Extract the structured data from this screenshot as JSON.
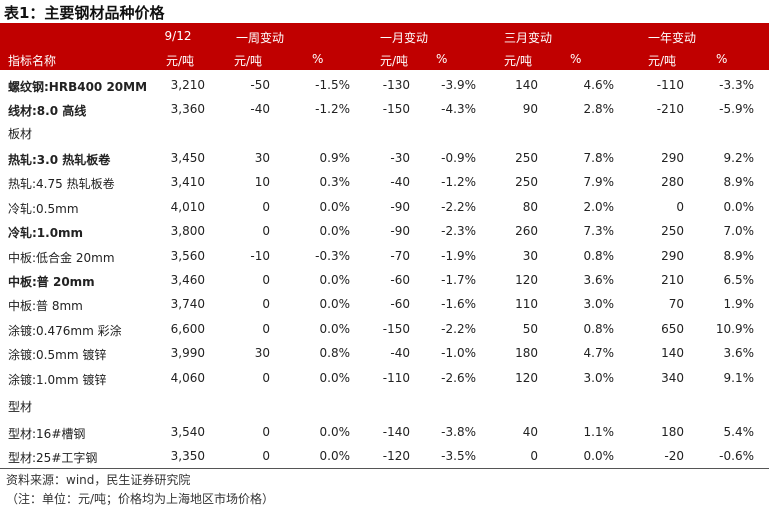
{
  "title": "表1：主要钢材品种价格",
  "header": {
    "row1": {
      "date": "9/12",
      "week": "一周变动",
      "month": "一月变动",
      "quarter": "三月变动",
      "year": "一年变动"
    },
    "row2": {
      "name": "指标名称",
      "unit": "元/吨",
      "pct": "%"
    }
  },
  "group1": [
    {
      "name": "螺纹钢:HRB400 20MM",
      "bold": true,
      "price": "3,210",
      "w": "-50",
      "wp": "-1.5%",
      "m": "-130",
      "mp": "-3.9%",
      "q": "140",
      "qp": "4.6%",
      "y": "-110",
      "yp": "-3.3%"
    },
    {
      "name": "线材:8.0 高线",
      "bold": true,
      "price": "3,360",
      "w": "-40",
      "wp": "-1.2%",
      "m": "-150",
      "mp": "-4.3%",
      "q": "90",
      "qp": "2.8%",
      "y": "-210",
      "yp": "-5.9%"
    }
  ],
  "section_plate": "板材",
  "group2": [
    {
      "name": "热轧:3.0 热轧板卷",
      "bold": true,
      "price": "3,450",
      "w": "30",
      "wp": "0.9%",
      "m": "-30",
      "mp": "-0.9%",
      "q": "250",
      "qp": "7.8%",
      "y": "290",
      "yp": "9.2%"
    },
    {
      "name": "热轧:4.75 热轧板卷",
      "bold": false,
      "price": "3,410",
      "w": "10",
      "wp": "0.3%",
      "m": "-40",
      "mp": "-1.2%",
      "q": "250",
      "qp": "7.9%",
      "y": "280",
      "yp": "8.9%"
    },
    {
      "name": "冷轧:0.5mm",
      "bold": false,
      "price": "4,010",
      "w": "0",
      "wp": "0.0%",
      "m": "-90",
      "mp": "-2.2%",
      "q": "80",
      "qp": "2.0%",
      "y": "0",
      "yp": "0.0%"
    },
    {
      "name": "冷轧:1.0mm",
      "bold": true,
      "price": "3,800",
      "w": "0",
      "wp": "0.0%",
      "m": "-90",
      "mp": "-2.3%",
      "q": "260",
      "qp": "7.3%",
      "y": "250",
      "yp": "7.0%"
    },
    {
      "name": "中板:低合金 20mm",
      "bold": false,
      "price": "3,560",
      "w": "-10",
      "wp": "-0.3%",
      "m": "-70",
      "mp": "-1.9%",
      "q": "30",
      "qp": "0.8%",
      "y": "290",
      "yp": "8.9%"
    },
    {
      "name": "中板:普 20mm",
      "bold": true,
      "price": "3,460",
      "w": "0",
      "wp": "0.0%",
      "m": "-60",
      "mp": "-1.7%",
      "q": "120",
      "qp": "3.6%",
      "y": "210",
      "yp": "6.5%"
    },
    {
      "name": "中板:普 8mm",
      "bold": false,
      "price": "3,740",
      "w": "0",
      "wp": "0.0%",
      "m": "-60",
      "mp": "-1.6%",
      "q": "110",
      "qp": "3.0%",
      "y": "70",
      "yp": "1.9%"
    },
    {
      "name": "涂镀:0.476mm 彩涂",
      "bold": false,
      "price": "6,600",
      "w": "0",
      "wp": "0.0%",
      "m": "-150",
      "mp": "-2.2%",
      "q": "50",
      "qp": "0.8%",
      "y": "650",
      "yp": "10.9%"
    },
    {
      "name": "涂镀:0.5mm 镀锌",
      "bold": false,
      "price": "3,990",
      "w": "30",
      "wp": "0.8%",
      "m": "-40",
      "mp": "-1.0%",
      "q": "180",
      "qp": "4.7%",
      "y": "140",
      "yp": "3.6%"
    },
    {
      "name": "涂镀:1.0mm 镀锌",
      "bold": false,
      "price": "4,060",
      "w": "0",
      "wp": "0.0%",
      "m": "-110",
      "mp": "-2.6%",
      "q": "120",
      "qp": "3.0%",
      "y": "340",
      "yp": "9.1%"
    }
  ],
  "section_profile": "型材",
  "group3": [
    {
      "name": "型材:16#槽钢",
      "bold": false,
      "price": "3,540",
      "w": "0",
      "wp": "0.0%",
      "m": "-140",
      "mp": "-3.8%",
      "q": "40",
      "qp": "1.1%",
      "y": "180",
      "yp": "5.4%"
    },
    {
      "name": "型材:25#工字钢",
      "bold": false,
      "price": "3,350",
      "w": "0",
      "wp": "0.0%",
      "m": "-120",
      "mp": "-3.5%",
      "q": "0",
      "qp": "0.0%",
      "y": "-20",
      "yp": "-0.6%"
    }
  ],
  "footer": {
    "source": "资料来源：wind，民生证券研究院",
    "note": "（注：单位：元/吨；价格均为上海地区市场价格）"
  }
}
